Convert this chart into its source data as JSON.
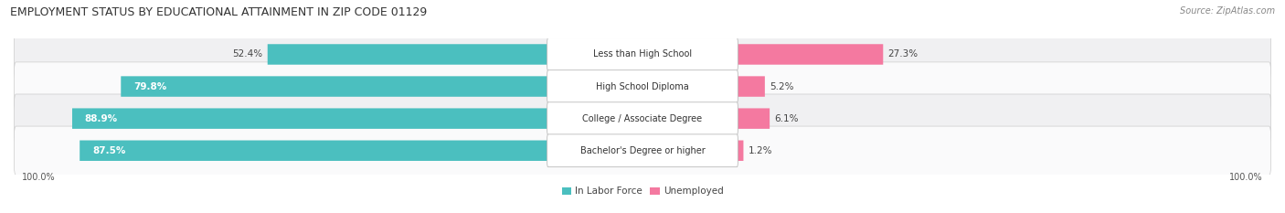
{
  "title": "EMPLOYMENT STATUS BY EDUCATIONAL ATTAINMENT IN ZIP CODE 01129",
  "source": "Source: ZipAtlas.com",
  "categories": [
    "Less than High School",
    "High School Diploma",
    "College / Associate Degree",
    "Bachelor's Degree or higher"
  ],
  "labor_force_pct": [
    52.4,
    79.8,
    88.9,
    87.5
  ],
  "unemployed_pct": [
    27.3,
    5.2,
    6.1,
    1.2
  ],
  "labor_force_color": "#4BBFBF",
  "unemployed_color": "#F479A0",
  "row_bg_color": [
    "#F0F0F2",
    "#FAFAFB",
    "#F0F0F2",
    "#FAFAFB"
  ],
  "title_fontsize": 9.0,
  "label_fontsize": 7.5,
  "source_fontsize": 7.0,
  "legend_fontsize": 7.5,
  "left_label_100": "100.0%",
  "right_label_100": "100.0%",
  "lf_label_inside": [
    false,
    true,
    true,
    true
  ],
  "label_threshold": 60.0
}
